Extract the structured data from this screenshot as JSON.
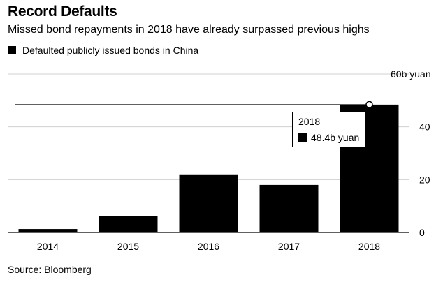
{
  "title": "Record Defaults",
  "subtitle": "Missed bond repayments in 2018 have already surpassed previous highs",
  "legend_label": "Defaulted publicly issued bonds in China",
  "source": "Source: Bloomberg",
  "colors": {
    "bar": "#000000",
    "grid": "#d0d0d0",
    "axis": "#000000"
  },
  "tooltip": {
    "year": "2018",
    "value": "48.4b yuan"
  },
  "chart_data": {
    "type": "bar",
    "title": "Record Defaults",
    "subtitle": "Missed bond repayments in 2018 have already surpassed previous highs",
    "categories": [
      "2014",
      "2015",
      "2016",
      "2017",
      "2018"
    ],
    "series": [
      {
        "name": "Defaulted publicly issued bonds in China",
        "values": [
          1.3,
          6.1,
          22,
          18,
          48.4
        ]
      }
    ],
    "ylim": [
      0,
      60
    ],
    "yticks": [
      0,
      20,
      40,
      60
    ],
    "ytick_labels": [
      "0",
      "20",
      "40",
      "60b yuan"
    ],
    "reference_line": 48.4,
    "grid": true,
    "y_axis_side": "right",
    "legend_position": "top-left"
  }
}
